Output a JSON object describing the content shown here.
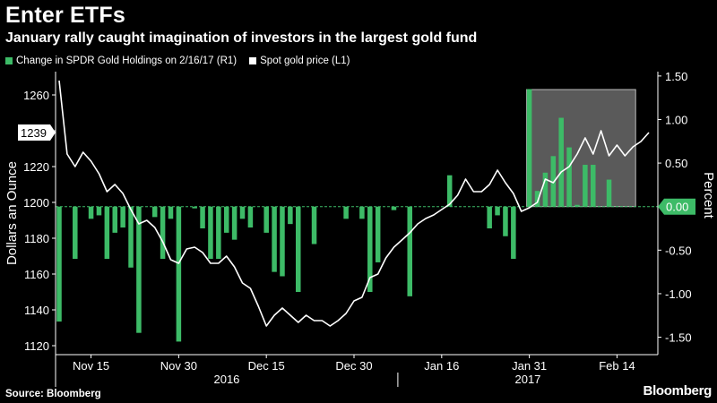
{
  "header": {
    "title": "Enter ETFs",
    "subtitle": "January rally caught imagination of investors in the largest gold fund"
  },
  "legend": [
    {
      "label": "Change in SPDR Gold Holdings on 2/16/17 (R1)",
      "color": "#3dbb67"
    },
    {
      "label": "Spot gold price (L1)",
      "color": "#ffffff"
    }
  ],
  "footer": {
    "source": "Source: Bloomberg",
    "brand": "Bloomberg"
  },
  "chart_data": {
    "type": "bar+line",
    "x_tick_labels": [
      "Nov 15",
      "Nov 30",
      "Dec 15",
      "Dec 30",
      "Jan 16",
      "Jan 31",
      "Feb 14"
    ],
    "x_tick_index": [
      4,
      15,
      26,
      37,
      48,
      59,
      70
    ],
    "year_labels": [
      "2016",
      "2017"
    ],
    "left_axis": {
      "label": "Dollars an Ounce",
      "ticks": [
        1120,
        1140,
        1160,
        1180,
        1200,
        1220,
        1240,
        1260
      ],
      "range": [
        1115,
        1273
      ]
    },
    "right_axis": {
      "label": "Percent",
      "ticks": [
        -1.5,
        -1.0,
        -0.5,
        0.0,
        0.5,
        1.0,
        1.5
      ],
      "tick_labels": [
        "-1.50",
        "-1.00",
        "-0.50",
        "0.00",
        "0.50",
        "1.00",
        "1.50"
      ],
      "range": [
        -1.7,
        1.55
      ],
      "zero_label": "0.00"
    },
    "current_price_label": "1239",
    "current_price": 1239,
    "highlight_range_index": [
      59,
      72
    ],
    "bars": {
      "name": "Change in SPDR Gold Holdings on 2/16/17 (R1)",
      "color": "#3dbb67",
      "values": [
        -1.32,
        0,
        -0.6,
        0,
        -0.14,
        -0.1,
        -0.6,
        -0.3,
        -0.24,
        -0.7,
        -1.45,
        0,
        -0.12,
        -0.6,
        -0.14,
        -1.55,
        0,
        -0.02,
        -0.25,
        -0.6,
        -0.6,
        -0.3,
        -0.38,
        -0.14,
        -0.24,
        0,
        -0.3,
        -0.75,
        -0.8,
        -0.2,
        -0.98,
        0,
        -0.43,
        0,
        0,
        0,
        -0.14,
        0,
        -0.14,
        -0.98,
        -0.64,
        0,
        -0.04,
        0,
        -1.03,
        0,
        0,
        0,
        0,
        0.36,
        0,
        0,
        0,
        0,
        -0.25,
        -0.1,
        -0.34,
        -0.6,
        0,
        1.35,
        0.18,
        0.39,
        0.58,
        1.02,
        0.68,
        0.02,
        0.48,
        0.48,
        0,
        0.31,
        0,
        0
      ]
    },
    "line": {
      "name": "Spot gold price (L1)",
      "color": "#ffffff",
      "values": [
        1268,
        1227,
        1220,
        1228,
        1223,
        1216,
        1206,
        1210,
        1205,
        1196,
        1188,
        1190,
        1186,
        1178,
        1168,
        1166,
        1174,
        1175,
        1172,
        1166,
        1166,
        1170,
        1164,
        1155,
        1152,
        1142,
        1131,
        1137,
        1141,
        1137,
        1133,
        1137,
        1134,
        1134,
        1131,
        1134,
        1138,
        1145,
        1147,
        1158,
        1160,
        1169,
        1175,
        1179,
        1183,
        1188,
        1191,
        1193,
        1196,
        1199,
        1204,
        1213,
        1206,
        1206,
        1210,
        1218,
        1211,
        1205,
        1195,
        1197,
        1200,
        1213,
        1211,
        1217,
        1220,
        1227,
        1236,
        1227,
        1240,
        1226,
        1232,
        1226,
        1231,
        1234,
        1239
      ]
    },
    "grid": false
  }
}
